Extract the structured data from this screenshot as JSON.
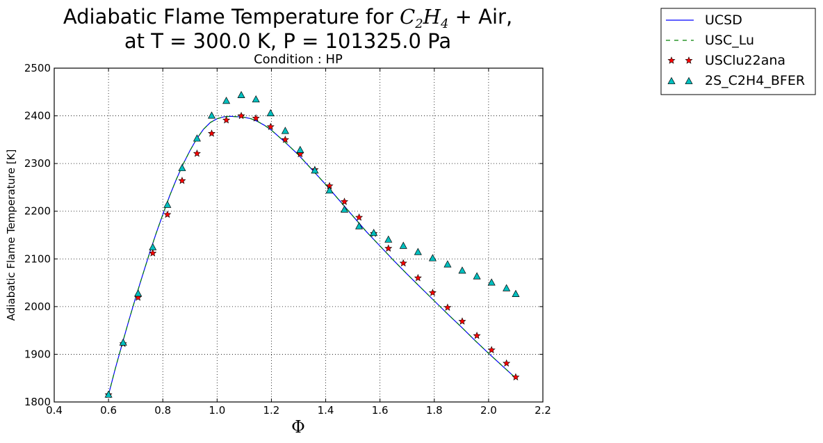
{
  "chart_data": {
    "type": "line",
    "title_line1_pre": "Adiabatic Flame Temperature for ",
    "title_formula_c": "C",
    "title_formula_c_sub": "2",
    "title_formula_h": "H",
    "title_formula_h_sub": "4",
    "title_line1_post": " + Air,",
    "title_line2": "at T = 300.0 K, P = 101325.0 Pa",
    "subtitle": "Condition : HP",
    "xlabel": "Φ",
    "ylabel": "Adiabatic Flame Temperature [K]",
    "xlim": [
      0.4,
      2.2
    ],
    "ylim": [
      1800,
      2500
    ],
    "xticks": [
      "0.4",
      "0.6",
      "0.8",
      "1.0",
      "1.2",
      "1.4",
      "1.6",
      "1.8",
      "2.0",
      "2.2"
    ],
    "yticks": [
      "1800",
      "1900",
      "2000",
      "2100",
      "2200",
      "2300",
      "2400",
      "2500"
    ],
    "grid": true,
    "legend_position": "outside-top-right",
    "x": [
      0.6,
      0.654,
      0.709,
      0.763,
      0.817,
      0.871,
      0.926,
      0.98,
      1.034,
      1.089,
      1.143,
      1.197,
      1.251,
      1.306,
      1.36,
      1.414,
      1.469,
      1.523,
      1.577,
      1.631,
      1.686,
      1.74,
      1.794,
      1.849,
      1.903,
      1.957,
      2.011,
      2.066,
      2.1
    ],
    "series": [
      {
        "name": "UCSD",
        "style": "line",
        "color": "#0000ff",
        "x": [
          0.6,
          0.625,
          0.65,
          0.675,
          0.7,
          0.725,
          0.75,
          0.775,
          0.8,
          0.825,
          0.85,
          0.875,
          0.9,
          0.925,
          0.95,
          0.975,
          1.0,
          1.025,
          1.05,
          1.075,
          1.09,
          1.1,
          1.125,
          1.15,
          1.175,
          1.2,
          1.25,
          1.3,
          1.35,
          1.4,
          1.45,
          1.5,
          1.55,
          1.6,
          1.65,
          1.7,
          1.75,
          1.8,
          1.85,
          1.9,
          1.95,
          2.0,
          2.05,
          2.1
        ],
        "values": [
          1815,
          1870,
          1921,
          1971,
          2019,
          2065,
          2110,
          2153,
          2193,
          2232,
          2267,
          2299,
          2327,
          2352,
          2372,
          2386,
          2394,
          2398,
          2399,
          2398,
          2398,
          2397,
          2394,
          2388,
          2380,
          2370,
          2345,
          2318,
          2287,
          2256,
          2223,
          2190,
          2157,
          2127,
          2097,
          2068,
          2040,
          2012,
          1984,
          1957,
          1929,
          1902,
          1876,
          1850
        ]
      },
      {
        "name": "USC_Lu",
        "style": "dashed",
        "color": "#008000",
        "x": [
          0.6,
          0.625,
          0.65,
          0.675,
          0.7,
          0.725,
          0.75,
          0.775,
          0.8,
          0.825,
          0.85,
          0.875,
          0.9,
          0.925,
          0.95,
          0.975,
          1.0,
          1.025,
          1.05,
          1.075,
          1.09,
          1.1,
          1.125,
          1.15,
          1.175,
          1.2,
          1.25,
          1.3,
          1.35,
          1.4,
          1.45,
          1.5,
          1.55,
          1.6,
          1.65,
          1.7,
          1.75,
          1.8,
          1.85,
          1.9,
          1.95,
          2.0,
          2.05,
          2.1
        ],
        "values": [
          1815,
          1870,
          1921,
          1971,
          2019,
          2065,
          2110,
          2153,
          2193,
          2232,
          2267,
          2299,
          2327,
          2352,
          2372,
          2386,
          2394,
          2398,
          2399,
          2398,
          2398,
          2397,
          2394,
          2388,
          2380,
          2370,
          2345,
          2318,
          2287,
          2256,
          2223,
          2190,
          2157,
          2127,
          2097,
          2068,
          2040,
          2012,
          1984,
          1957,
          1929,
          1902,
          1876,
          1850
        ]
      },
      {
        "name": "USClu22ana",
        "style": "star-markers",
        "color": "#ff0000",
        "x": [
          0.6,
          0.654,
          0.709,
          0.763,
          0.817,
          0.871,
          0.926,
          0.98,
          1.034,
          1.089,
          1.143,
          1.197,
          1.251,
          1.306,
          1.36,
          1.414,
          1.469,
          1.523,
          1.577,
          1.631,
          1.686,
          1.74,
          1.794,
          1.849,
          1.903,
          1.957,
          2.011,
          2.066,
          2.1
        ],
        "values": [
          1815,
          1922,
          2019,
          2112,
          2193,
          2264,
          2321,
          2363,
          2391,
          2400,
          2395,
          2377,
          2350,
          2320,
          2287,
          2253,
          2220,
          2187,
          2153,
          2122,
          2091,
          2060,
          2029,
          1998,
          1969,
          1939,
          1909,
          1881,
          1852
        ]
      },
      {
        "name": "2S_C2H4_BFER",
        "style": "triangle-markers",
        "color": "#00bfbf",
        "x": [
          0.6,
          0.654,
          0.709,
          0.763,
          0.817,
          0.871,
          0.926,
          0.98,
          1.034,
          1.089,
          1.143,
          1.197,
          1.251,
          1.306,
          1.36,
          1.414,
          1.469,
          1.523,
          1.577,
          1.631,
          1.686,
          1.74,
          1.794,
          1.849,
          1.903,
          1.957,
          2.011,
          2.066,
          2.1
        ],
        "values": [
          1815,
          1924,
          2027,
          2124,
          2213,
          2290,
          2352,
          2400,
          2431,
          2443,
          2434,
          2405,
          2368,
          2328,
          2285,
          2243,
          2203,
          2168,
          2154,
          2140,
          2127,
          2114,
          2101,
          2088,
          2075,
          2063,
          2050,
          2038,
          2026
        ]
      }
    ]
  }
}
